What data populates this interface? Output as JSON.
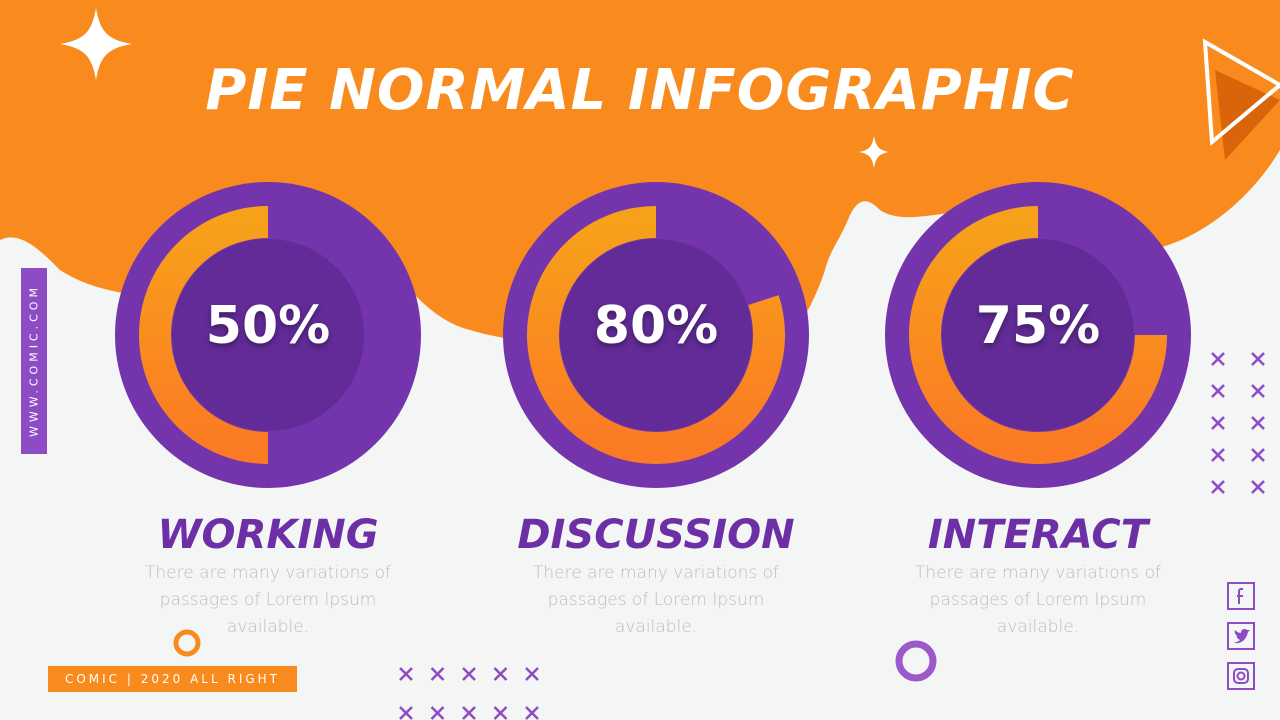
{
  "title": "PIE NORMAL INFOGRAPHIC",
  "side_text": "WWW.COMIC.COM",
  "footer": "COMIC | 2020 ALL RIGHT",
  "cards": [
    {
      "value": 50,
      "value_label": "50%",
      "title": "WORKING",
      "text": "There are many variations of passages of Lorem Ipsum available."
    },
    {
      "value": 80,
      "value_label": "80%",
      "title": "DISCUSSION",
      "text": "There are many variations of passages of Lorem Ipsum available."
    },
    {
      "value": 75,
      "value_label": "75%",
      "title": "INTERACT",
      "text": "There are many variations of passages of Lorem Ipsum available."
    }
  ]
}
